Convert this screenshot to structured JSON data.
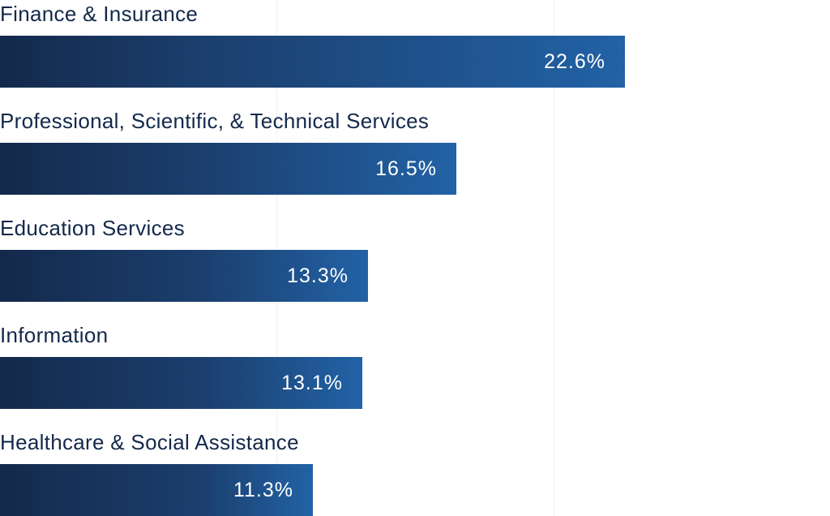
{
  "chart_data": {
    "type": "bar",
    "orientation": "horizontal",
    "categories": [
      "Finance & Insurance",
      "Professional, Scientific, & Technical Services",
      "Education Services",
      "Information",
      "Healthcare & Social Assistance"
    ],
    "values": [
      22.6,
      16.5,
      13.3,
      13.1,
      11.3
    ],
    "value_labels": [
      "22.6%",
      "16.5%",
      "13.3%",
      "13.1%",
      "11.3%"
    ],
    "xlim": [
      0,
      30
    ],
    "gridlines": [
      10,
      20
    ],
    "grid": true,
    "colors": {
      "bar_start": "#13294b",
      "bar_end": "#2262a6",
      "label": "#13294b",
      "value_text": "#ffffff"
    }
  }
}
